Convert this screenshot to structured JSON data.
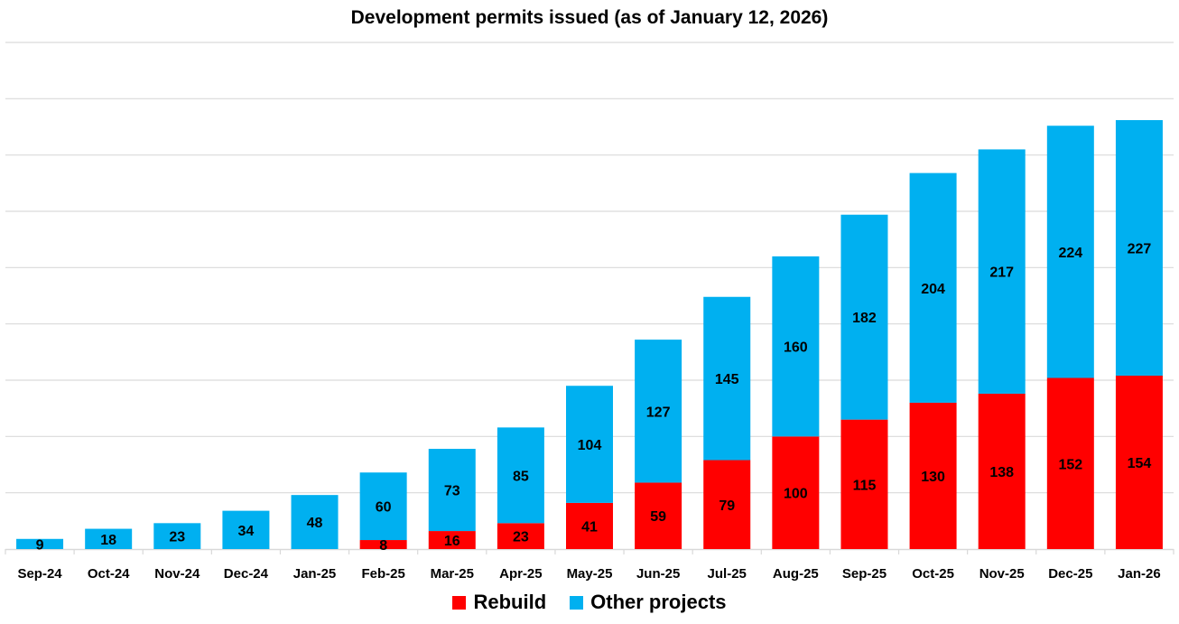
{
  "chart_data": {
    "type": "bar",
    "stacked": true,
    "title": "Development permits issued (as of January 12, 2026)",
    "xlabel": "",
    "ylabel": "",
    "ylim": [
      0,
      450
    ],
    "y_gridline_step": 50,
    "grid": true,
    "y_tick_labels_visible": false,
    "legend_position": "bottom",
    "categories": [
      "Sep-24",
      "Oct-24",
      "Nov-24",
      "Dec-24",
      "Jan-25",
      "Feb-25",
      "Mar-25",
      "Apr-25",
      "May-25",
      "Jun-25",
      "Jul-25",
      "Aug-25",
      "Sep-25",
      "Oct-25",
      "Nov-25",
      "Dec-25",
      "Jan-26"
    ],
    "series": [
      {
        "name": "Rebuild",
        "color": "#FF0000",
        "values": [
          0,
          0,
          0,
          0,
          0,
          8,
          16,
          23,
          41,
          59,
          79,
          100,
          115,
          130,
          138,
          152,
          154
        ],
        "labels_shown": [
          false,
          false,
          false,
          false,
          false,
          true,
          true,
          true,
          true,
          true,
          true,
          true,
          true,
          true,
          true,
          true,
          true
        ]
      },
      {
        "name": "Other projects",
        "color": "#00B0F0",
        "values": [
          9,
          18,
          23,
          34,
          48,
          60,
          73,
          85,
          104,
          127,
          145,
          160,
          182,
          204,
          217,
          224,
          227
        ],
        "labels_shown": [
          true,
          true,
          true,
          true,
          true,
          true,
          true,
          true,
          true,
          true,
          true,
          true,
          true,
          true,
          true,
          true,
          true
        ]
      }
    ]
  },
  "legend": {
    "items": [
      {
        "label": "Rebuild",
        "color": "#FF0000"
      },
      {
        "label": "Other projects",
        "color": "#00B0F0"
      }
    ]
  }
}
